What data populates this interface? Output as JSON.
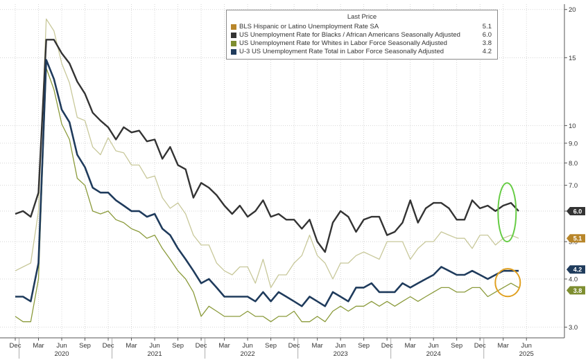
{
  "chart_data": {
    "type": "line",
    "legend": {
      "title": "Last Price",
      "placement": "top-center"
    },
    "y_scale": "log",
    "ylim": [
      2.8,
      21
    ],
    "yticks": [
      "3.0",
      "4.0",
      "5.0",
      "6.0",
      "7.0",
      "8.0",
      "9.0",
      "10",
      "15",
      "20"
    ],
    "grid": true,
    "x_axis": {
      "start": "2019-12",
      "end": "2025-06",
      "month_labels": [
        "Dec",
        "Mar",
        "Jun",
        "Sep",
        "Dec",
        "Mar",
        "Jun",
        "Sep",
        "Dec",
        "Mar",
        "Jun",
        "Sep",
        "Dec",
        "Mar",
        "Jun",
        "Sep",
        "Dec",
        "Mar",
        "Jun",
        "Sep",
        "Dec",
        "Mar",
        "Jun"
      ],
      "year_labels": [
        "2020",
        "2021",
        "2022",
        "2023",
        "2024",
        "2025"
      ]
    },
    "x": [
      "2019-12",
      "2020-01",
      "2020-02",
      "2020-03",
      "2020-04",
      "2020-05",
      "2020-06",
      "2020-07",
      "2020-08",
      "2020-09",
      "2020-10",
      "2020-11",
      "2020-12",
      "2021-01",
      "2021-02",
      "2021-03",
      "2021-04",
      "2021-05",
      "2021-06",
      "2021-07",
      "2021-08",
      "2021-09",
      "2021-10",
      "2021-11",
      "2021-12",
      "2022-01",
      "2022-02",
      "2022-03",
      "2022-04",
      "2022-05",
      "2022-06",
      "2022-07",
      "2022-08",
      "2022-09",
      "2022-10",
      "2022-11",
      "2022-12",
      "2023-01",
      "2023-02",
      "2023-03",
      "2023-04",
      "2023-05",
      "2023-06",
      "2023-07",
      "2023-08",
      "2023-09",
      "2023-10",
      "2023-11",
      "2023-12",
      "2024-01",
      "2024-02",
      "2024-03",
      "2024-04",
      "2024-05",
      "2024-06",
      "2024-07",
      "2024-08",
      "2024-09",
      "2024-10",
      "2024-11",
      "2024-12",
      "2025-01",
      "2025-02",
      "2025-03",
      "2025-04",
      "2025-05"
    ],
    "series": [
      {
        "name": "BLS Hispanic or Latino Unemployment Rate SA",
        "last": "5.1",
        "color": "#c8c89a",
        "label_color": "#b8862a",
        "values": [
          4.2,
          4.3,
          4.4,
          6.0,
          18.9,
          17.6,
          14.5,
          12.9,
          10.5,
          10.3,
          8.8,
          8.4,
          9.3,
          8.6,
          8.5,
          7.9,
          7.9,
          7.3,
          7.4,
          6.5,
          6.1,
          6.3,
          5.9,
          5.2,
          4.9,
          4.9,
          4.4,
          4.2,
          4.1,
          4.3,
          4.3,
          3.9,
          4.5,
          3.8,
          4.1,
          4.1,
          4.4,
          4.6,
          5.2,
          4.6,
          4.4,
          4.0,
          4.4,
          4.4,
          4.6,
          4.7,
          4.6,
          4.5,
          5.0,
          5.0,
          5.0,
          4.5,
          4.8,
          5.0,
          5.0,
          5.3,
          5.2,
          5.1,
          5.1,
          4.8,
          5.2,
          5.2,
          4.9,
          5.1,
          5.2,
          5.1
        ]
      },
      {
        "name": "US Unemployment Rate for Blacks / African Americans Seasonally Adjusted",
        "last": "6.0",
        "color": "#333333",
        "label_color": "#333333",
        "values": [
          5.9,
          6.0,
          5.8,
          6.7,
          16.7,
          16.7,
          15.4,
          14.5,
          13.0,
          12.1,
          10.8,
          10.3,
          9.9,
          9.2,
          9.9,
          9.6,
          9.7,
          9.1,
          9.2,
          8.2,
          8.8,
          7.9,
          7.7,
          6.5,
          7.1,
          6.9,
          6.6,
          6.2,
          5.9,
          6.2,
          5.8,
          6.0,
          6.4,
          5.8,
          5.9,
          5.7,
          5.7,
          5.4,
          5.7,
          5.0,
          4.7,
          5.6,
          6.0,
          5.8,
          5.3,
          5.7,
          5.8,
          5.8,
          5.2,
          5.3,
          5.6,
          6.4,
          5.6,
          6.1,
          6.3,
          6.3,
          6.1,
          5.7,
          5.7,
          6.4,
          6.1,
          6.2,
          6.0,
          6.2,
          6.3,
          6.0
        ]
      },
      {
        "name": "US Unemployment Rate for Whites in Labor Force Seasonally Adjusted",
        "last": "3.8",
        "color": "#8a9a3a",
        "label_color": "#7e8e30",
        "values": [
          3.2,
          3.1,
          3.1,
          4.0,
          14.1,
          12.4,
          10.1,
          9.2,
          7.3,
          7.0,
          6.0,
          5.9,
          6.0,
          5.7,
          5.6,
          5.4,
          5.3,
          5.1,
          5.2,
          4.8,
          4.5,
          4.2,
          4.0,
          3.7,
          3.2,
          3.4,
          3.3,
          3.2,
          3.2,
          3.2,
          3.3,
          3.2,
          3.2,
          3.1,
          3.2,
          3.2,
          3.3,
          3.1,
          3.1,
          3.2,
          3.1,
          3.3,
          3.4,
          3.3,
          3.4,
          3.4,
          3.5,
          3.4,
          3.5,
          3.4,
          3.5,
          3.6,
          3.5,
          3.6,
          3.7,
          3.8,
          3.8,
          3.7,
          3.7,
          3.8,
          3.8,
          3.6,
          3.7,
          3.8,
          3.9,
          3.8
        ]
      },
      {
        "name": "U-3 US Unemployment Rate Total in Labor Force Seasonally Adjusted",
        "last": "4.2",
        "color": "#1f3b5c",
        "label_color": "#1f3b5c",
        "values": [
          3.6,
          3.6,
          3.5,
          4.4,
          14.8,
          13.2,
          11.0,
          10.2,
          8.4,
          7.8,
          6.9,
          6.7,
          6.7,
          6.4,
          6.2,
          6.0,
          6.0,
          5.8,
          5.9,
          5.4,
          5.2,
          4.8,
          4.5,
          4.2,
          3.9,
          4.0,
          3.8,
          3.6,
          3.6,
          3.6,
          3.6,
          3.5,
          3.7,
          3.5,
          3.7,
          3.6,
          3.5,
          3.4,
          3.6,
          3.5,
          3.4,
          3.7,
          3.6,
          3.5,
          3.8,
          3.8,
          3.9,
          3.7,
          3.7,
          3.7,
          3.9,
          3.8,
          3.9,
          4.0,
          4.1,
          4.3,
          4.2,
          4.1,
          4.1,
          4.2,
          4.1,
          4.0,
          4.1,
          4.2,
          4.2,
          4.2
        ]
      }
    ],
    "highlight_ellipse_colors": [
      "#66cc44",
      "#e0a020"
    ]
  }
}
